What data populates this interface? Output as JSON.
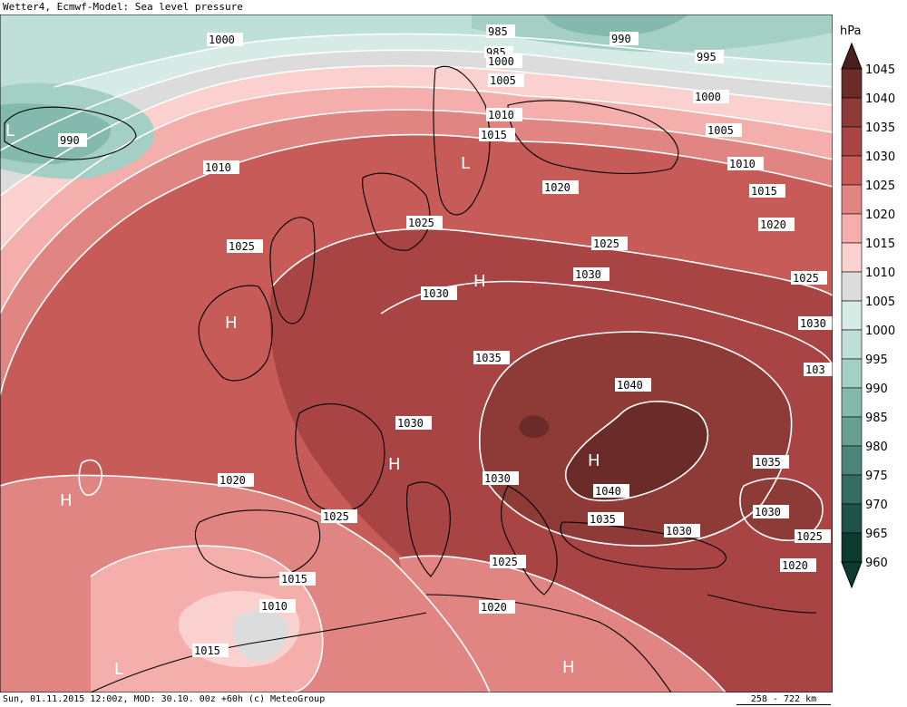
{
  "header": {
    "title": "Wetter4, Ecmwf-Model: Sea level pressure"
  },
  "footer": {
    "run_info": "Sun, 01.11.2015 12:00z, MOD: 30.10. 00z +60h (c) MeteoGroup",
    "scale": "258 - 722 km"
  },
  "legend": {
    "unit": "hPa",
    "levels": [
      {
        "value": "1045",
        "color": "#4a1e1e"
      },
      {
        "value": "1040",
        "color": "#6b2b29"
      },
      {
        "value": "1035",
        "color": "#8e3a37"
      },
      {
        "value": "1030",
        "color": "#a84443"
      },
      {
        "value": "1025",
        "color": "#c65b57"
      },
      {
        "value": "1020",
        "color": "#e08582"
      },
      {
        "value": "1015",
        "color": "#f4aeab"
      },
      {
        "value": "1010",
        "color": "#fbd1cf"
      },
      {
        "value": "1005",
        "color": "#dcdcdc"
      },
      {
        "value": "1000",
        "color": "#d6ebe6"
      },
      {
        "value": "995",
        "color": "#bfe0d8"
      },
      {
        "value": "990",
        "color": "#a3cfc4"
      },
      {
        "value": "985",
        "color": "#84b9ad"
      },
      {
        "value": "980",
        "color": "#679f93"
      },
      {
        "value": "975",
        "color": "#4b857a"
      },
      {
        "value": "970",
        "color": "#356c61"
      },
      {
        "value": "965",
        "color": "#1f5248"
      },
      {
        "value": "960",
        "color": "#0c3a30"
      }
    ]
  },
  "map": {
    "isobar_labels": [
      {
        "text": "1000"
      },
      {
        "text": "985"
      },
      {
        "text": "985"
      },
      {
        "text": "990"
      },
      {
        "text": "1000"
      },
      {
        "text": "995"
      },
      {
        "text": "1005"
      },
      {
        "text": "990"
      },
      {
        "text": "1000"
      },
      {
        "text": "1010"
      },
      {
        "text": "1015"
      },
      {
        "text": "1005"
      },
      {
        "text": "1010"
      },
      {
        "text": "1010"
      },
      {
        "text": "1020"
      },
      {
        "text": "1015"
      },
      {
        "text": "1025"
      },
      {
        "text": "1020"
      },
      {
        "text": "1025"
      },
      {
        "text": "1025"
      },
      {
        "text": "1030"
      },
      {
        "text": "1025"
      },
      {
        "text": "1030"
      },
      {
        "text": "1030"
      },
      {
        "text": "1035"
      },
      {
        "text": "103"
      },
      {
        "text": "1040"
      },
      {
        "text": "1030"
      },
      {
        "text": "1035"
      },
      {
        "text": "1020"
      },
      {
        "text": "1030"
      },
      {
        "text": "1040"
      },
      {
        "text": "1030"
      },
      {
        "text": "1025"
      },
      {
        "text": "1035"
      },
      {
        "text": "1030"
      },
      {
        "text": "1025"
      },
      {
        "text": "1025"
      },
      {
        "text": "1015"
      },
      {
        "text": "1020"
      },
      {
        "text": "1010"
      },
      {
        "text": "1020"
      },
      {
        "text": "1015"
      }
    ],
    "pressure_centers": [
      {
        "text": "L"
      },
      {
        "text": "L"
      },
      {
        "text": "H"
      },
      {
        "text": "H"
      },
      {
        "text": "H"
      },
      {
        "text": "H"
      },
      {
        "text": "H"
      },
      {
        "text": "L"
      },
      {
        "text": "H"
      }
    ]
  }
}
